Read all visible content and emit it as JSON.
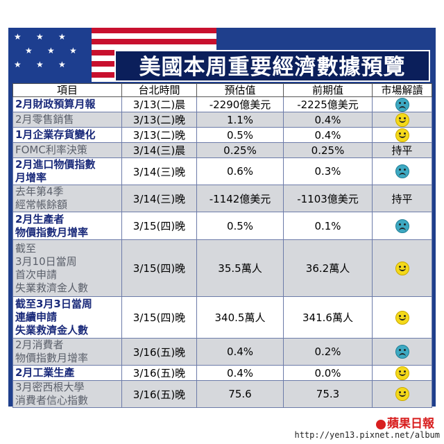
{
  "title": "美國本周重要經濟數據預覽",
  "headers": [
    "項目",
    "台北時間",
    "預估值",
    "前期值",
    "市場解讀"
  ],
  "rows": [
    {
      "item": "2月財政預算月報",
      "time": "3/13(二)晨",
      "forecast": "-2290億美元",
      "previous": "-2225億美元",
      "reading": "sad",
      "reading_text": "",
      "style": "bold",
      "shade": "w"
    },
    {
      "item": "2月零售銷售",
      "time": "3/13(二)晚",
      "forecast": "1.1%",
      "previous": "0.4%",
      "reading": "smile",
      "reading_text": "",
      "style": "alt",
      "shade": "g"
    },
    {
      "item": "1月企業存貨變化",
      "time": "3/13(二)晚",
      "forecast": "0.5%",
      "previous": "0.4%",
      "reading": "smile",
      "reading_text": "",
      "style": "bold",
      "shade": "w"
    },
    {
      "item": "FOMC利率決策",
      "time": "3/14(三)晨",
      "forecast": "0.25%",
      "previous": "0.25%",
      "reading": "text",
      "reading_text": "持平",
      "style": "alt",
      "shade": "g"
    },
    {
      "item": "2月進口物價指數\n月增率",
      "time": "3/14(三)晚",
      "forecast": "0.6%",
      "previous": "0.3%",
      "reading": "sad",
      "reading_text": "",
      "style": "bold",
      "shade": "w"
    },
    {
      "item": "去年第4季\n經常帳餘額",
      "time": "3/14(三)晚",
      "forecast": "-1142億美元",
      "previous": "-1103億美元",
      "reading": "text",
      "reading_text": "持平",
      "style": "alt",
      "shade": "g"
    },
    {
      "item": "2月生產者\n物價指數月增率",
      "time": "3/15(四)晚",
      "forecast": "0.5%",
      "previous": "0.1%",
      "reading": "sad",
      "reading_text": "",
      "style": "bold",
      "shade": "w"
    },
    {
      "item": "截至\n3月10日當周\n首次申請\n失業救濟金人數",
      "time": "3/15(四)晚",
      "forecast": "35.5萬人",
      "previous": "36.2萬人",
      "reading": "smile",
      "reading_text": "",
      "style": "alt",
      "shade": "g"
    },
    {
      "item": "截至3月3日當周\n連續申請\n失業救濟金人數",
      "time": "3/15(四)晚",
      "forecast": "340.5萬人",
      "previous": "341.6萬人",
      "reading": "smile",
      "reading_text": "",
      "style": "bold",
      "shade": "w"
    },
    {
      "item": "2月消費者\n物價指數月增率",
      "time": "3/16(五)晚",
      "forecast": "0.4%",
      "previous": "0.2%",
      "reading": "sad",
      "reading_text": "",
      "style": "alt",
      "shade": "g"
    },
    {
      "item": "2月工業生產",
      "time": "3/16(五)晚",
      "forecast": "0.4%",
      "previous": "0.0%",
      "reading": "smile",
      "reading_text": "",
      "style": "bold",
      "shade": "w"
    },
    {
      "item": "3月密西根大學\n消費者信心指數",
      "time": "3/16(五)晚",
      "forecast": "75.6",
      "previous": "75.3",
      "reading": "smile",
      "reading_text": "",
      "style": "alt",
      "shade": "g"
    }
  ],
  "logo": "蘋果日報",
  "url": "http://yen13.pixnet.net/album",
  "colors": {
    "panel": "#1f3f8c",
    "title_bg": "#0b1f5b",
    "flag_red": "#c8102e",
    "smile": "#f4d91a",
    "sad": "#3ea9c2"
  }
}
